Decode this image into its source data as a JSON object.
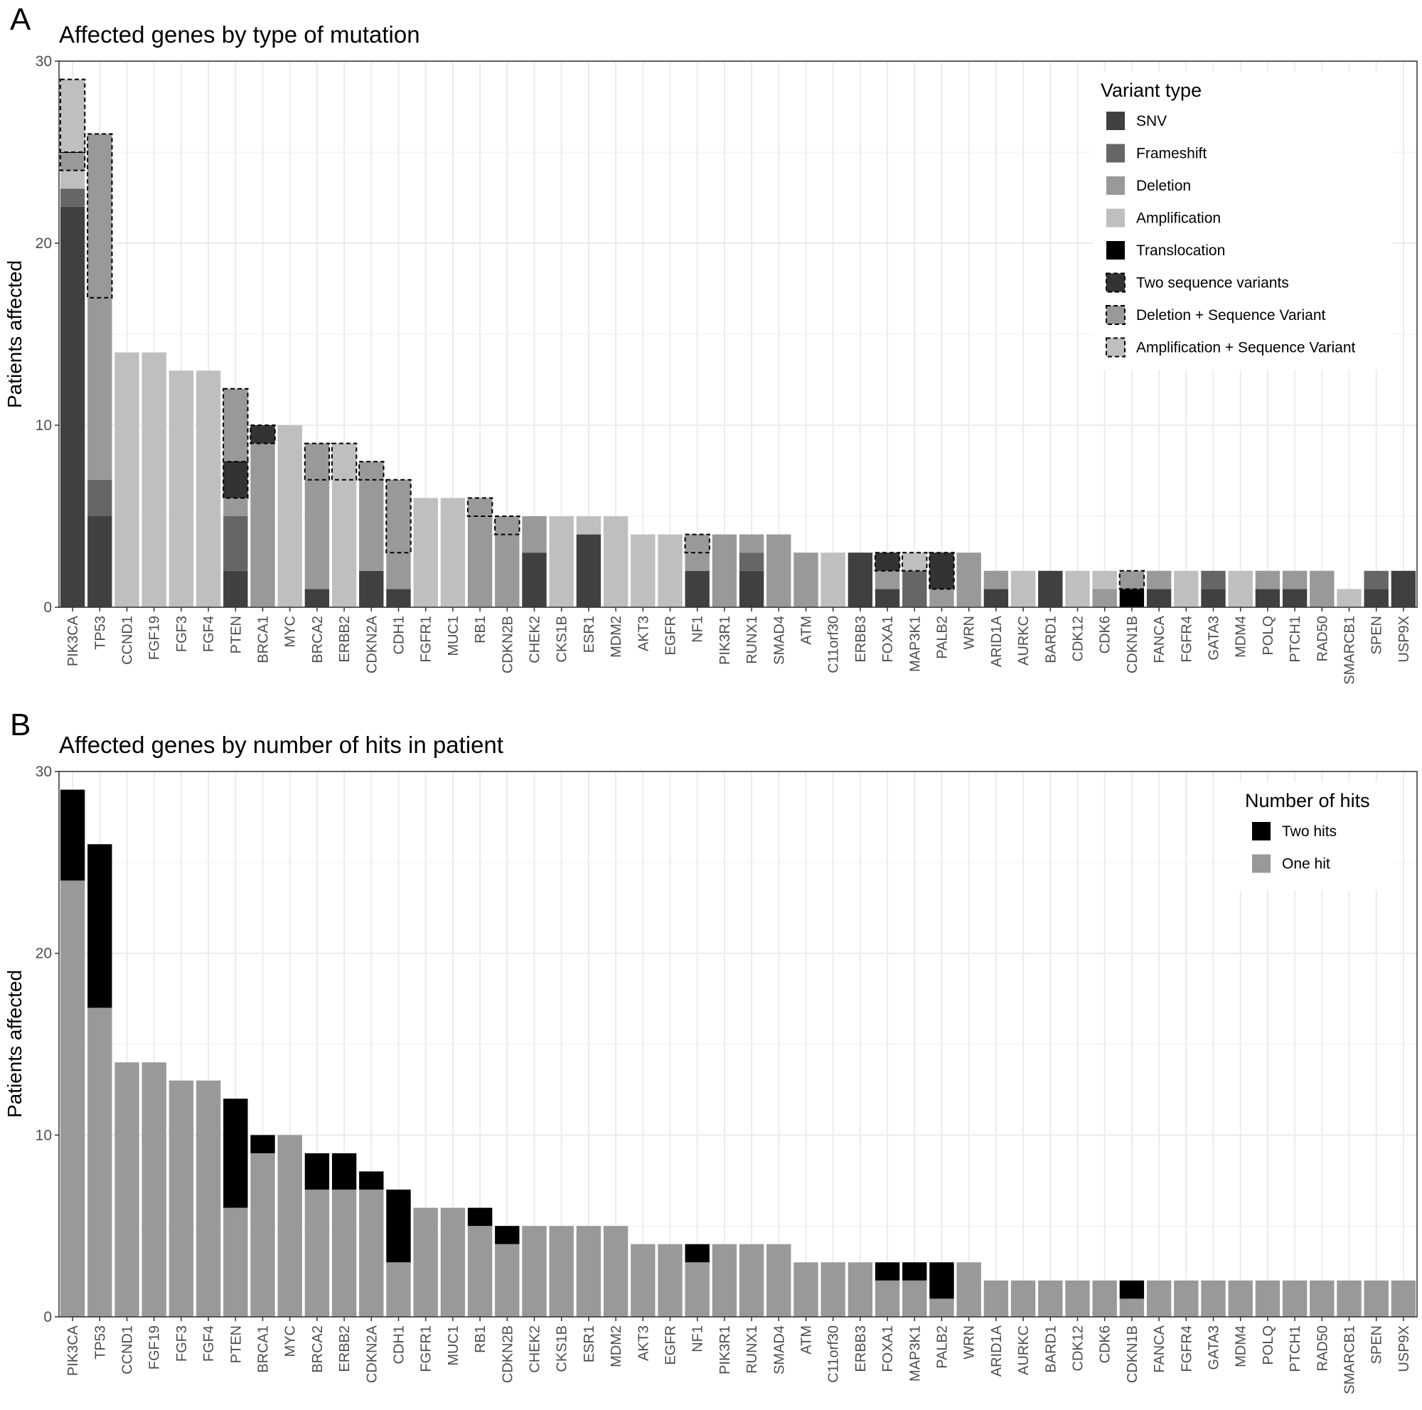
{
  "panels": {
    "A": {
      "letter": "A",
      "title": "Affected genes by type of mutation"
    },
    "B": {
      "letter": "B",
      "title": "Affected genes by number of hits in patient"
    }
  },
  "colors": {
    "SNV": "#404040",
    "Frameshift": "#666666",
    "Deletion": "#999999",
    "Amplification": "#bfbfbf",
    "Translocation": "#000000",
    "Two sequence variants": "#333333",
    "Deletion + Sequence Variant": "#999999",
    "Amplification + Sequence Variant": "#bfbfbf",
    "Two hits": "#000000",
    "One hit": "#999999"
  },
  "chart_data": [
    {
      "type": "bar",
      "stacked": true,
      "title": "Affected genes by type of mutation",
      "xlabel": "",
      "ylabel": "Patients affected",
      "ylim": [
        0,
        30
      ],
      "yticks": [
        0,
        10,
        20,
        30
      ],
      "grid": true,
      "legend_title": "Variant type",
      "legend_position": "top-right",
      "legend": [
        "SNV",
        "Frameshift",
        "Deletion",
        "Amplification",
        "Translocation",
        "Two sequence variants",
        "Deletion + Sequence Variant",
        "Amplification + Sequence Variant"
      ],
      "dashed_series": [
        "Two sequence variants",
        "Deletion + Sequence Variant",
        "Amplification + Sequence Variant"
      ],
      "categories": [
        "PIK3CA",
        "TP53",
        "CCND1",
        "FGF19",
        "FGF3",
        "FGF4",
        "PTEN",
        "BRCA1",
        "MYC",
        "BRCA2",
        "ERBB2",
        "CDKN2A",
        "CDH1",
        "FGFR1",
        "MUC1",
        "RB1",
        "CDKN2B",
        "CHEK2",
        "CKS1B",
        "ESR1",
        "MDM2",
        "AKT3",
        "EGFR",
        "NF1",
        "PIK3R1",
        "RUNX1",
        "SMAD4",
        "ATM",
        "C11orf30",
        "ERBB3",
        "FOXA1",
        "MAP3K1",
        "PALB2",
        "WRN",
        "ARID1A",
        "AURKC",
        "BARD1",
        "CDK12",
        "CDK6",
        "CDKN1B",
        "FANCA",
        "FGFR4",
        "GATA3",
        "MDM4",
        "POLQ",
        "PTCH1",
        "RAD50",
        "SMARCB1",
        "SPEN",
        "USP9X"
      ],
      "series": [
        {
          "name": "SNV",
          "values": [
            22,
            5,
            0,
            0,
            0,
            0,
            2,
            0,
            0,
            1,
            0,
            2,
            1,
            0,
            0,
            0,
            0,
            3,
            0,
            4,
            0,
            0,
            0,
            2,
            0,
            2,
            0,
            0,
            0,
            3,
            1,
            0,
            0,
            0,
            1,
            0,
            2,
            0,
            0,
            0,
            1,
            0,
            1,
            0,
            1,
            1,
            0,
            0,
            1,
            2
          ]
        },
        {
          "name": "Frameshift",
          "values": [
            1,
            2,
            0,
            0,
            0,
            0,
            3,
            0,
            0,
            0,
            0,
            0,
            0,
            0,
            0,
            0,
            0,
            0,
            0,
            0,
            0,
            0,
            0,
            0,
            0,
            1,
            0,
            0,
            0,
            0,
            0,
            2,
            0,
            0,
            0,
            0,
            0,
            0,
            0,
            0,
            0,
            0,
            1,
            0,
            0,
            0,
            0,
            0,
            1,
            0
          ]
        },
        {
          "name": "Deletion",
          "values": [
            0,
            10,
            0,
            0,
            0,
            0,
            1,
            9,
            0,
            6,
            0,
            5,
            2,
            0,
            0,
            5,
            4,
            2,
            0,
            0,
            0,
            0,
            0,
            1,
            4,
            1,
            4,
            3,
            0,
            0,
            1,
            0,
            1,
            3,
            1,
            0,
            0,
            0,
            1,
            0,
            1,
            0,
            0,
            0,
            1,
            1,
            2,
            0,
            0,
            0
          ]
        },
        {
          "name": "Amplification",
          "values": [
            1,
            0,
            14,
            14,
            13,
            13,
            0,
            0,
            10,
            0,
            7,
            0,
            0,
            6,
            6,
            0,
            0,
            0,
            5,
            1,
            5,
            4,
            4,
            0,
            0,
            0,
            0,
            0,
            3,
            0,
            0,
            0,
            0,
            0,
            0,
            2,
            0,
            2,
            1,
            0,
            0,
            2,
            0,
            2,
            0,
            0,
            0,
            1,
            0,
            0
          ]
        },
        {
          "name": "Translocation",
          "values": [
            0,
            0,
            0,
            0,
            0,
            0,
            0,
            0,
            0,
            0,
            0,
            0,
            0,
            0,
            0,
            0,
            0,
            0,
            0,
            0,
            0,
            0,
            0,
            0,
            0,
            0,
            0,
            0,
            0,
            0,
            0,
            0,
            0,
            0,
            0,
            0,
            0,
            0,
            0,
            1,
            0,
            0,
            0,
            0,
            0,
            0,
            0,
            0,
            0,
            0
          ]
        },
        {
          "name": "Two sequence variants",
          "values": [
            0,
            0,
            0,
            0,
            0,
            0,
            2,
            1,
            0,
            0,
            0,
            0,
            0,
            0,
            0,
            0,
            0,
            0,
            0,
            0,
            0,
            0,
            0,
            0,
            0,
            0,
            0,
            0,
            0,
            0,
            1,
            0,
            2,
            0,
            0,
            0,
            0,
            0,
            0,
            0,
            0,
            0,
            0,
            0,
            0,
            0,
            0,
            0,
            0,
            0
          ]
        },
        {
          "name": "Deletion + Sequence Variant",
          "values": [
            1,
            9,
            0,
            0,
            0,
            0,
            4,
            0,
            0,
            2,
            0,
            1,
            4,
            0,
            0,
            1,
            1,
            0,
            0,
            0,
            0,
            0,
            0,
            1,
            0,
            0,
            0,
            0,
            0,
            0,
            0,
            0,
            0,
            0,
            0,
            0,
            0,
            0,
            0,
            1,
            0,
            0,
            0,
            0,
            0,
            0,
            0,
            0,
            0,
            0
          ]
        },
        {
          "name": "Amplification + Sequence Variant",
          "values": [
            4,
            0,
            0,
            0,
            0,
            0,
            0,
            0,
            0,
            0,
            2,
            0,
            0,
            0,
            0,
            0,
            0,
            0,
            0,
            0,
            0,
            0,
            0,
            0,
            0,
            0,
            0,
            0,
            0,
            0,
            0,
            1,
            0,
            0,
            0,
            0,
            0,
            0,
            0,
            0,
            0,
            0,
            0,
            0,
            0,
            0,
            0,
            0,
            0,
            0
          ]
        }
      ]
    },
    {
      "type": "bar",
      "stacked": true,
      "title": "Affected genes by number of hits in patient",
      "xlabel": "",
      "ylabel": "Patients affected",
      "ylim": [
        0,
        30
      ],
      "yticks": [
        0,
        10,
        20,
        30
      ],
      "grid": true,
      "legend_title": "Number of hits",
      "legend_position": "top-right",
      "legend": [
        "Two hits",
        "One hit"
      ],
      "categories": [
        "PIK3CA",
        "TP53",
        "CCND1",
        "FGF19",
        "FGF3",
        "FGF4",
        "PTEN",
        "BRCA1",
        "MYC",
        "BRCA2",
        "ERBB2",
        "CDKN2A",
        "CDH1",
        "FGFR1",
        "MUC1",
        "RB1",
        "CDKN2B",
        "CHEK2",
        "CKS1B",
        "ESR1",
        "MDM2",
        "AKT3",
        "EGFR",
        "NF1",
        "PIK3R1",
        "RUNX1",
        "SMAD4",
        "ATM",
        "C11orf30",
        "ERBB3",
        "FOXA1",
        "MAP3K1",
        "PALB2",
        "WRN",
        "ARID1A",
        "AURKC",
        "BARD1",
        "CDK12",
        "CDK6",
        "CDKN1B",
        "FANCA",
        "FGFR4",
        "GATA3",
        "MDM4",
        "POLQ",
        "PTCH1",
        "RAD50",
        "SMARCB1",
        "SPEN",
        "USP9X"
      ],
      "series": [
        {
          "name": "One hit",
          "values": [
            24,
            17,
            14,
            14,
            13,
            13,
            6,
            9,
            10,
            7,
            7,
            7,
            3,
            6,
            6,
            5,
            4,
            5,
            5,
            5,
            5,
            4,
            4,
            3,
            4,
            4,
            4,
            3,
            3,
            3,
            2,
            2,
            1,
            3,
            2,
            2,
            2,
            2,
            2,
            1,
            2,
            2,
            2,
            2,
            2,
            2,
            2,
            2,
            2,
            2
          ]
        },
        {
          "name": "Two hits",
          "values": [
            5,
            9,
            0,
            0,
            0,
            0,
            6,
            1,
            0,
            2,
            2,
            1,
            4,
            0,
            0,
            1,
            1,
            0,
            0,
            0,
            0,
            0,
            0,
            1,
            0,
            0,
            0,
            0,
            0,
            0,
            1,
            1,
            2,
            0,
            0,
            0,
            0,
            0,
            0,
            1,
            0,
            0,
            0,
            0,
            0,
            0,
            0,
            0,
            0,
            0
          ]
        }
      ]
    }
  ]
}
